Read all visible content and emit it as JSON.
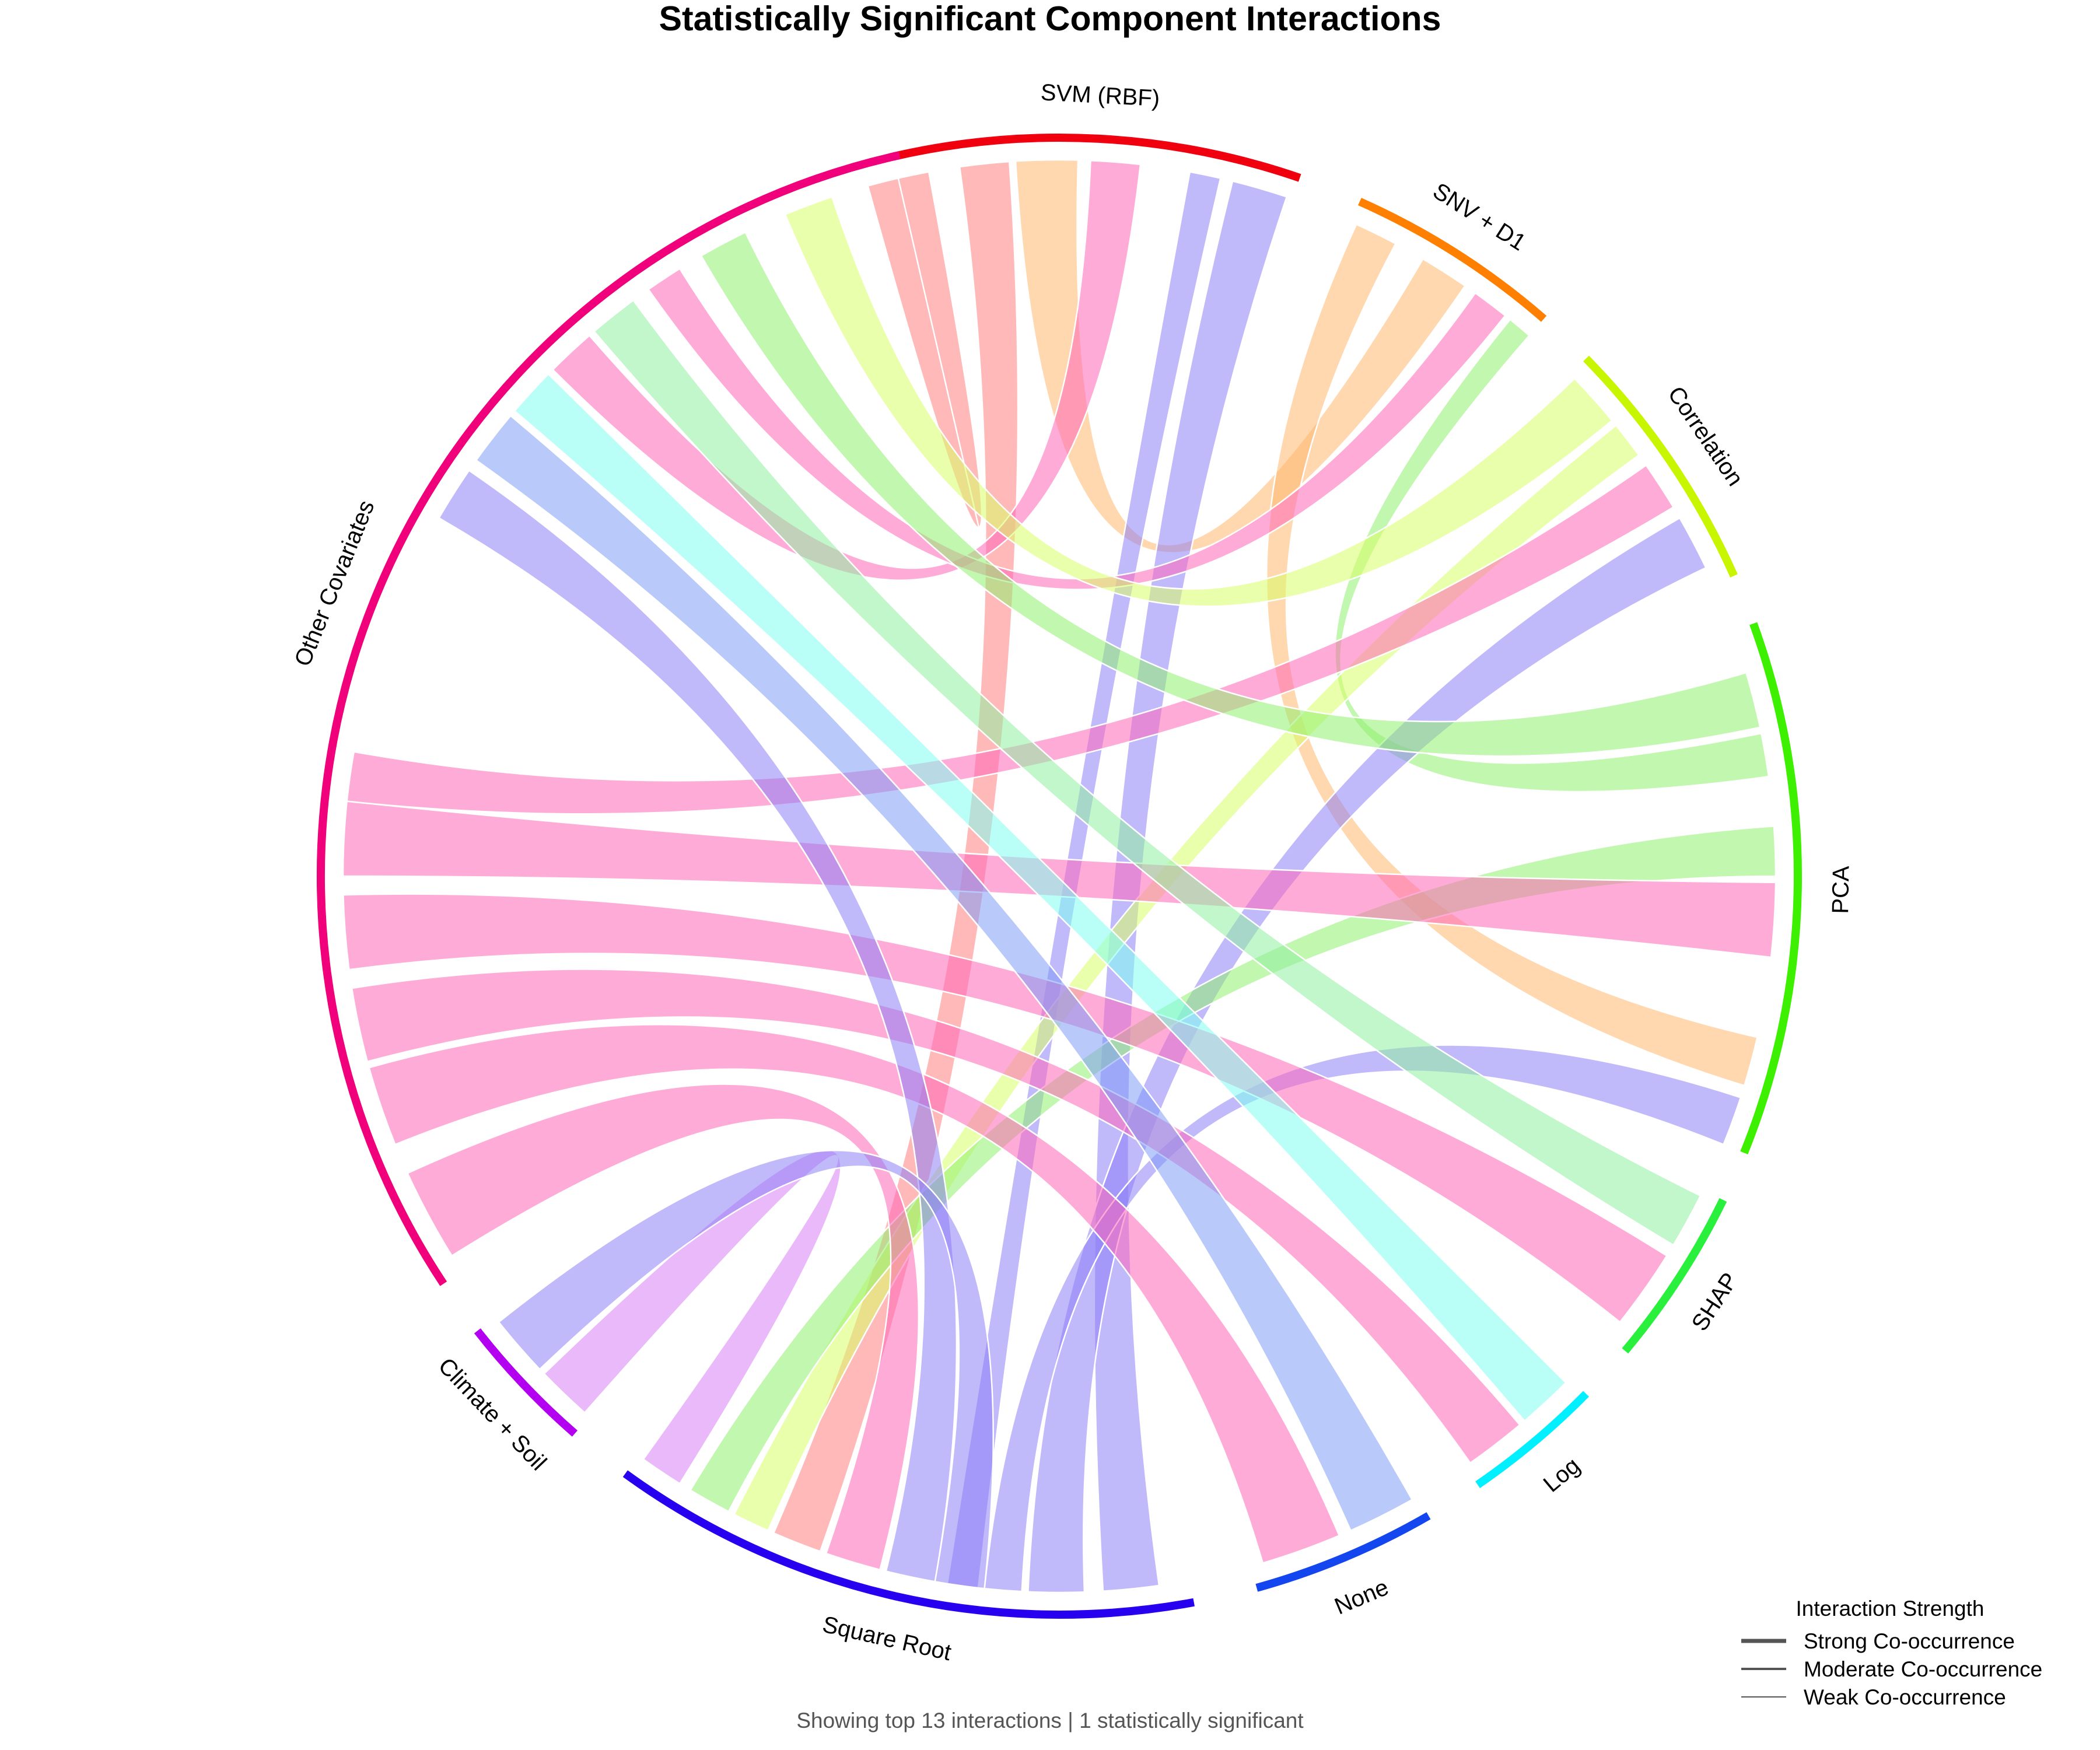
{
  "chart_data": {
    "type": "chord",
    "title": "Statistically Significant Component Interactions",
    "footnote": "Showing top 13 interactions | 1 statistically significant",
    "segments": [
      {
        "name": "SVM (RBF)",
        "color": "#f0000f",
        "start": -13.0,
        "end": 19.0
      },
      {
        "name": "SNV + D1",
        "color": "#ff7f00",
        "start": 24.0,
        "end": 41.0
      },
      {
        "name": "Correlation",
        "color": "#c8f500",
        "start": 45.5,
        "end": 66.0
      },
      {
        "name": "PCA",
        "color": "#3cf000",
        "start": 70.0,
        "end": 112.0
      },
      {
        "name": "SHAP",
        "color": "#28f03c",
        "start": 116.0,
        "end": 130.0
      },
      {
        "name": "Log",
        "color": "#00f0ff",
        "start": 134.5,
        "end": 145.5
      },
      {
        "name": "None",
        "color": "#1446f0",
        "start": 150.0,
        "end": 164.5
      },
      {
        "name": "Square Root",
        "color": "#2800f0",
        "start": 169.5,
        "end": 216.0
      },
      {
        "name": "Climate + Soil",
        "color": "#b400f0",
        "start": 221.0,
        "end": 232.0
      },
      {
        "name": "Other Covariates",
        "color": "#f0007a",
        "start": 236.5,
        "end": 347.5
      }
    ],
    "ribbons": [
      {
        "from": "SVM (RBF)",
        "to": "Other Covariates",
        "a0": -13.0,
        "a1": -10.5,
        "b0": 344.5,
        "b1": 347.0,
        "color": "#ff8080"
      },
      {
        "from": "SVM (RBF)",
        "to": "Square Root",
        "a0": -8.0,
        "a1": -4.0,
        "b0": 199.5,
        "b1": 203.5,
        "color": "#ff8080"
      },
      {
        "from": "SVM (RBF)",
        "to": "SNV + D1",
        "a0": -3.5,
        "a1": 1.5,
        "b0": 30.5,
        "b1": 34.5,
        "color": "#ffb870"
      },
      {
        "from": "SVM (RBF)",
        "to": "Other Covariates",
        "a0": 2.5,
        "a1": 6.5,
        "b0": 315.0,
        "b1": 319.0,
        "color": "#ff66b8"
      },
      {
        "from": "SVM (RBF)",
        "to": "Square Root",
        "a0": 10.5,
        "a1": 13.0,
        "b0": 186.5,
        "b1": 189.0,
        "color": "#8c80f5"
      },
      {
        "from": "SVM (RBF)",
        "to": "None",
        "a0": 14.0,
        "a1": 18.5,
        "b0": 172.0,
        "b1": 176.5,
        "color": "#8c80f5"
      },
      {
        "from": "SNV + D1",
        "to": "PCA",
        "a0": 24.5,
        "a1": 28.0,
        "b0": 103.0,
        "b1": 107.0,
        "color": "#ffb870"
      },
      {
        "from": "SNV + D1",
        "to": "Other Covariates",
        "a0": 35.5,
        "a1": 38.5,
        "b0": 325.0,
        "b1": 328.0,
        "color": "#ff66b8"
      },
      {
        "from": "SNV + D1",
        "to": "PCA",
        "a0": 39.0,
        "a1": 41.0,
        "b0": 78.5,
        "b1": 82.0,
        "color": "#90f070"
      },
      {
        "from": "Correlation",
        "to": "Other Covariates",
        "a0": 46.0,
        "a1": 50.5,
        "b0": 337.5,
        "b1": 341.5,
        "color": "#d8ff66"
      },
      {
        "from": "Correlation",
        "to": "Square Root",
        "a0": 51.0,
        "a1": 54.0,
        "b0": 204.0,
        "b1": 207.0,
        "color": "#d8ff66"
      },
      {
        "from": "Correlation",
        "to": "Other Covariates",
        "a0": 55.0,
        "a1": 59.0,
        "b0": 276.0,
        "b1": 280.0,
        "color": "#ff66b8"
      },
      {
        "from": "Correlation",
        "to": "Square Root",
        "a0": 60.0,
        "a1": 64.5,
        "b0": 178.0,
        "b1": 182.5,
        "color": "#8c80f5"
      },
      {
        "from": "PCA",
        "to": "Other Covariates",
        "a0": 73.5,
        "a1": 78.0,
        "b0": 330.0,
        "b1": 334.0,
        "color": "#90f070"
      },
      {
        "from": "PCA",
        "to": "Square Root",
        "a0": 86.0,
        "a1": 90.0,
        "b0": 207.5,
        "b1": 211.0,
        "color": "#90f070"
      },
      {
        "from": "PCA",
        "to": "Other Covariates",
        "a0": 90.5,
        "a1": 96.5,
        "b0": 270.0,
        "b1": 276.0,
        "color": "#ff66b8"
      },
      {
        "from": "PCA",
        "to": "Square Root",
        "a0": 108.0,
        "a1": 112.0,
        "b0": 183.0,
        "b1": 186.0,
        "color": "#8c80f5"
      },
      {
        "from": "SHAP",
        "to": "Other Covariates",
        "a0": 116.5,
        "a1": 121.0,
        "b0": 319.5,
        "b1": 323.5,
        "color": "#90f0a0"
      },
      {
        "from": "SHAP",
        "to": "Other Covariates",
        "a0": 122.0,
        "a1": 128.5,
        "b0": 262.5,
        "b1": 268.5,
        "color": "#ff66b8"
      },
      {
        "from": "Log",
        "to": "Other Covariates",
        "a0": 135.0,
        "a1": 139.5,
        "b0": 310.5,
        "b1": 314.5,
        "color": "#80fff0"
      },
      {
        "from": "Log",
        "to": "Other Covariates",
        "a0": 140.0,
        "a1": 145.0,
        "b0": 255.0,
        "b1": 261.0,
        "color": "#ff66b8"
      },
      {
        "from": "None",
        "to": "Other Covariates",
        "a0": 150.5,
        "a1": 156.0,
        "b0": 305.5,
        "b1": 310.0,
        "color": "#809cf5"
      },
      {
        "from": "None",
        "to": "Other Covariates",
        "a0": 157.0,
        "a1": 163.5,
        "b0": 248.0,
        "b1": 254.5,
        "color": "#ff66b8"
      },
      {
        "from": "Square Root",
        "to": "Other Covariates",
        "a0": 190.0,
        "a1": 194.0,
        "b0": 300.0,
        "b1": 304.5,
        "color": "#8c80f5"
      },
      {
        "from": "Square Root",
        "to": "Other Covariates",
        "a0": 194.5,
        "a1": 199.0,
        "b0": 238.0,
        "b1": 245.5,
        "color": "#ff66b8"
      },
      {
        "from": "Square Root",
        "to": "Climate + Soil",
        "a0": 212.0,
        "a1": 215.5,
        "b0": 221.5,
        "b1": 226.0,
        "color": "#d880f5"
      },
      {
        "from": "Climate + Soil",
        "to": "Square Root",
        "a0": 226.5,
        "a1": 231.5,
        "b0": 186.0,
        "b1": 190.0,
        "color": "#8c80f5"
      }
    ],
    "legend": {
      "title": "Interaction Strength",
      "items": [
        {
          "label": "Strong Co-occurrence",
          "level": "strong"
        },
        {
          "label": "Moderate Co-occurrence",
          "level": "moderate"
        },
        {
          "label": "Weak Co-occurrence",
          "level": "weak"
        }
      ]
    }
  }
}
